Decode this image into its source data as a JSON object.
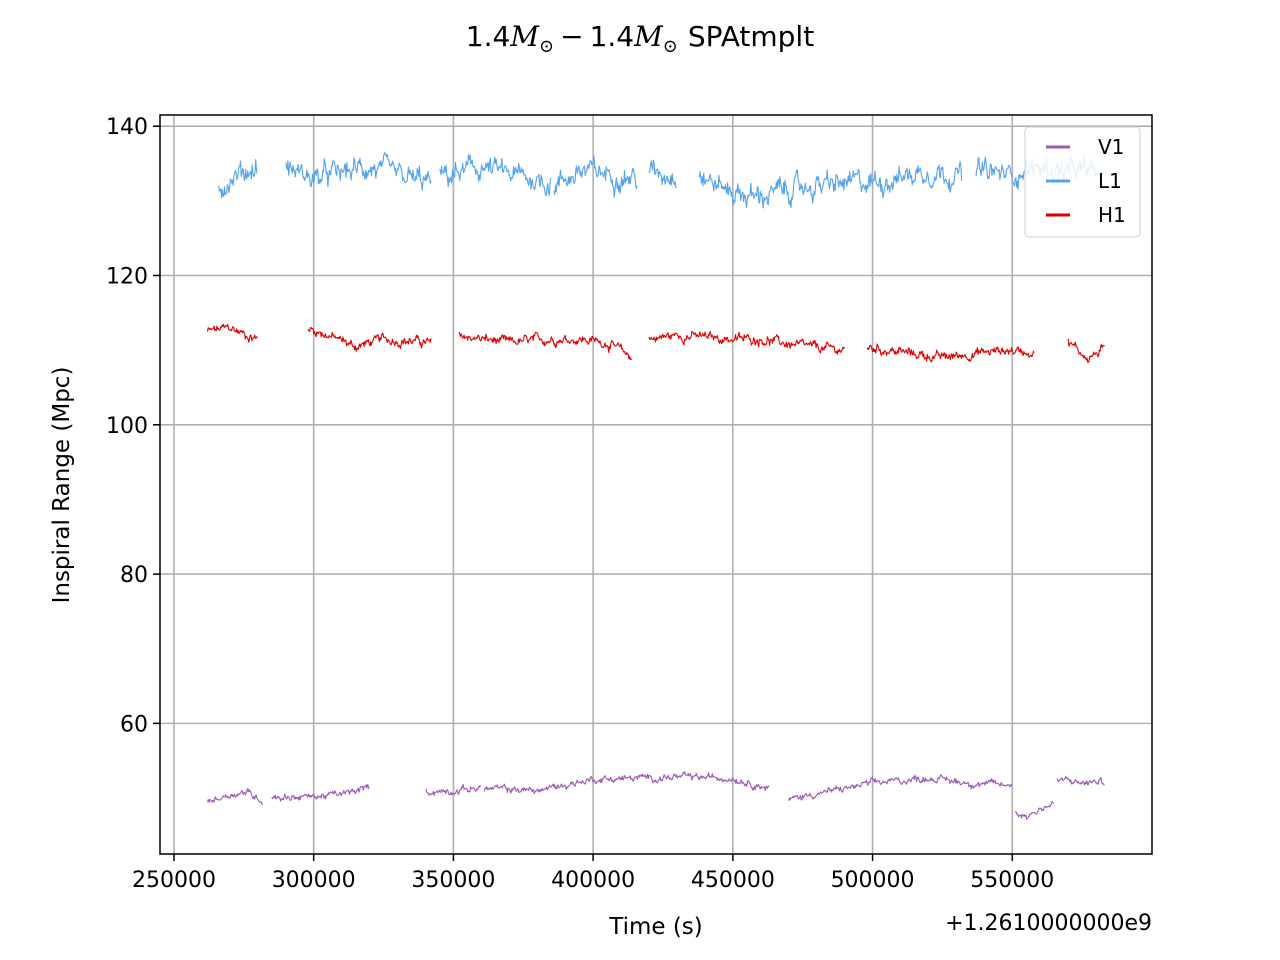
{
  "chart_data": {
    "type": "line",
    "title": {
      "mass1": "1.4",
      "mass2": "1.4",
      "symbol": "M",
      "sub": "⊙",
      "sep": "−",
      "suffix": "SPAtmplt"
    },
    "xlabel": "Time (s)",
    "ylabel": "Inspiral Range (Mpc)",
    "x_offset_label": "+1.2610000000e9",
    "xlim": [
      245000,
      600000
    ],
    "ylim": [
      42.5,
      141.5
    ],
    "xticks": [
      250000,
      300000,
      350000,
      400000,
      450000,
      500000,
      550000
    ],
    "xtick_labels": [
      "250000",
      "300000",
      "350000",
      "400000",
      "450000",
      "500000",
      "550000"
    ],
    "yticks": [
      60,
      80,
      100,
      120,
      140
    ],
    "ytick_labels": [
      "60",
      "80",
      "100",
      "120",
      "140"
    ],
    "grid": true,
    "legend_position": "upper right",
    "series": [
      {
        "name": "V1",
        "color": "#9b59b6",
        "noise": 0.5,
        "segments": [
          {
            "x": [
              262000,
              270000,
              276000,
              282000
            ],
            "y": [
              49.5,
              50.5,
              50.8,
              49.6
            ]
          },
          {
            "x": [
              285000,
              300000,
              312000,
              320000
            ],
            "y": [
              50.1,
              50.2,
              50.6,
              51.5
            ]
          },
          {
            "x": [
              340000,
              350000,
              360000
            ],
            "y": [
              50.8,
              51.0,
              51.4
            ]
          },
          {
            "x": [
              361000,
              380000,
              400000,
              430000,
              450000,
              463000
            ],
            "y": [
              51.3,
              51.0,
              52.5,
              52.8,
              52.7,
              51.3
            ]
          },
          {
            "x": [
              470000,
              478000,
              485000,
              500000,
              520000,
              535000,
              550000
            ],
            "y": [
              49.8,
              50.5,
              50.9,
              52.0,
              52.7,
              52.0,
              51.7
            ]
          },
          {
            "x": [
              551000,
              555000,
              560000,
              565000
            ],
            "y": [
              48.2,
              47.5,
              48.6,
              49.2
            ]
          },
          {
            "x": [
              566000,
              575000,
              583000
            ],
            "y": [
              52.5,
              52.0,
              52.2
            ]
          }
        ]
      },
      {
        "name": "L1",
        "color": "#55a3ec",
        "noise": 1.6,
        "segments": [
          {
            "x": [
              266000,
              272000,
              280000
            ],
            "y": [
              132.0,
              133.5,
              134.5
            ]
          },
          {
            "x": [
              290000,
              300000,
              320000,
              332000,
              342000
            ],
            "y": [
              134.5,
              133.0,
              134.5,
              133.0,
              132.5
            ]
          },
          {
            "x": [
              345000,
              360000,
              370000,
              385000
            ],
            "y": [
              133.0,
              134.5,
              133.5,
              132.5
            ]
          },
          {
            "x": [
              386000,
              395000,
              410000,
              416000
            ],
            "y": [
              132.0,
              134.0,
              133.5,
              133.0
            ]
          },
          {
            "x": [
              420000,
              430000
            ],
            "y": [
              133.5,
              133.8
            ]
          },
          {
            "x": [
              438000,
              448000,
              458000,
              470000,
              480000,
              500000,
              520000,
              532000
            ],
            "y": [
              133.5,
              131.5,
              130.5,
              131.5,
              132.0,
              132.5,
              134.0,
              133.5
            ]
          },
          {
            "x": [
              537000,
              548000,
              560000,
              570000,
              580000
            ],
            "y": [
              134.0,
              133.5,
              134.5,
              133.8,
              134.0
            ]
          }
        ]
      },
      {
        "name": "H1",
        "color": "#e00000",
        "noise": 0.7,
        "segments": [
          {
            "x": [
              262000,
              270000,
              276000,
              280000
            ],
            "y": [
              112.5,
              113.0,
              112.0,
              111.5
            ]
          },
          {
            "x": [
              298000,
              305000,
              315000,
              325000,
              342000
            ],
            "y": [
              113.0,
              112.0,
              110.5,
              111.5,
              111.0
            ]
          },
          {
            "x": [
              352000,
              360000,
              370000,
              385000,
              395000,
              405000,
              414000
            ],
            "y": [
              112.0,
              111.5,
              111.0,
              111.5,
              111.5,
              111.0,
              109.0
            ]
          },
          {
            "x": [
              420000,
              430000,
              450000,
              460000,
              475000,
              490000
            ],
            "y": [
              111.5,
              112.0,
              111.5,
              111.5,
              110.5,
              110.0
            ]
          },
          {
            "x": [
              498000,
              505000,
              515000,
              525000,
              535000,
              548000,
              558000
            ],
            "y": [
              110.5,
              110.0,
              109.5,
              109.0,
              109.5,
              110.0,
              109.8
            ]
          },
          {
            "x": [
              570000,
              577000,
              583000
            ],
            "y": [
              111.0,
              109.0,
              110.0
            ]
          }
        ]
      }
    ]
  }
}
